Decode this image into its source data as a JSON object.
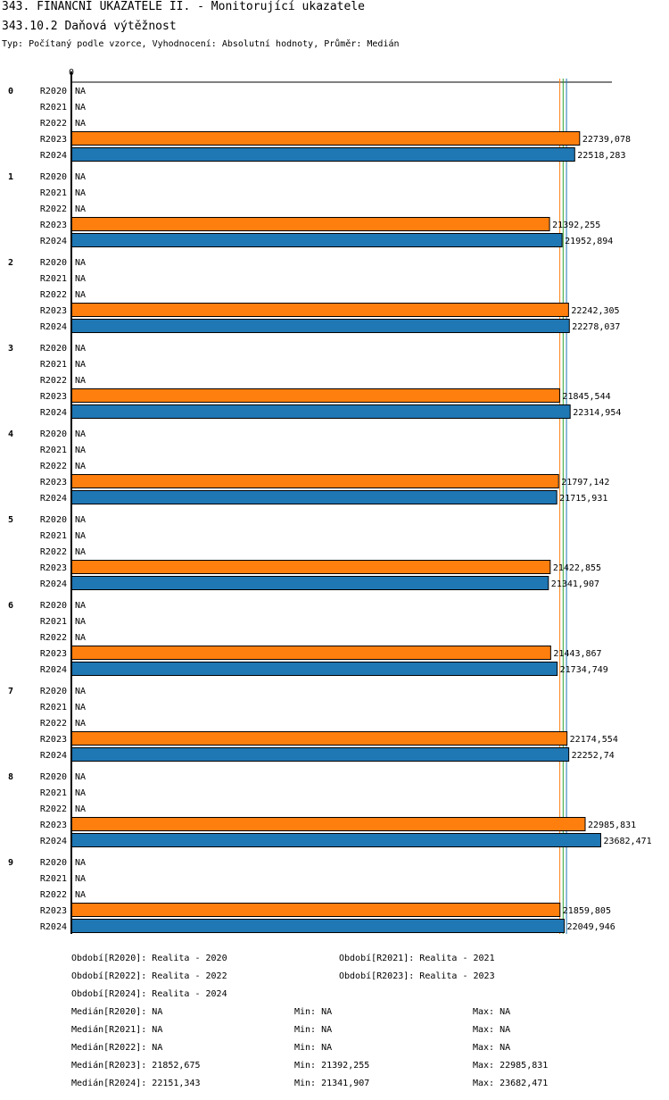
{
  "header": {
    "title": "343. FINANČNÍ UKAZATELE II. - Monitorující ukazatele",
    "subtitle": "343.10.2 Daňová výtěžnost",
    "type_line": "Typ: Počítaný podle vzorce, Vyhodnocení: Absolutní hodnoty, Průměr: Medián"
  },
  "colors": {
    "R2023": "#ff7f0e",
    "R2024": "#1f77b4",
    "median_R2023": "#ff7f0e",
    "median_R2024": "#1f77b4",
    "median_mid": "#2ca02c"
  },
  "chart_data": {
    "type": "bar",
    "orientation": "horizontal",
    "axis_zero_label": "0",
    "x_max": 24500,
    "na_label": "NA",
    "groups": [
      {
        "label": "0",
        "rows": [
          {
            "period": "R2020",
            "value": null,
            "label": "NA"
          },
          {
            "period": "R2021",
            "value": null,
            "label": "NA"
          },
          {
            "period": "R2022",
            "value": null,
            "label": "NA"
          },
          {
            "period": "R2023",
            "value": 22739.078,
            "label": "22739,078"
          },
          {
            "period": "R2024",
            "value": 22518.283,
            "label": "22518,283"
          }
        ]
      },
      {
        "label": "1",
        "rows": [
          {
            "period": "R2020",
            "value": null,
            "label": "NA"
          },
          {
            "period": "R2021",
            "value": null,
            "label": "NA"
          },
          {
            "period": "R2022",
            "value": null,
            "label": "NA"
          },
          {
            "period": "R2023",
            "value": 21392.255,
            "label": "21392,255"
          },
          {
            "period": "R2024",
            "value": 21952.894,
            "label": "21952,894"
          }
        ]
      },
      {
        "label": "2",
        "rows": [
          {
            "period": "R2020",
            "value": null,
            "label": "NA"
          },
          {
            "period": "R2021",
            "value": null,
            "label": "NA"
          },
          {
            "period": "R2022",
            "value": null,
            "label": "NA"
          },
          {
            "period": "R2023",
            "value": 22242.305,
            "label": "22242,305"
          },
          {
            "period": "R2024",
            "value": 22278.037,
            "label": "22278,037"
          }
        ]
      },
      {
        "label": "3",
        "rows": [
          {
            "period": "R2020",
            "value": null,
            "label": "NA"
          },
          {
            "period": "R2021",
            "value": null,
            "label": "NA"
          },
          {
            "period": "R2022",
            "value": null,
            "label": "NA"
          },
          {
            "period": "R2023",
            "value": 21845.544,
            "label": "21845,544"
          },
          {
            "period": "R2024",
            "value": 22314.954,
            "label": "22314,954"
          }
        ]
      },
      {
        "label": "4",
        "rows": [
          {
            "period": "R2020",
            "value": null,
            "label": "NA"
          },
          {
            "period": "R2021",
            "value": null,
            "label": "NA"
          },
          {
            "period": "R2022",
            "value": null,
            "label": "NA"
          },
          {
            "period": "R2023",
            "value": 21797.142,
            "label": "21797,142"
          },
          {
            "period": "R2024",
            "value": 21715.931,
            "label": "21715,931"
          }
        ]
      },
      {
        "label": "5",
        "rows": [
          {
            "period": "R2020",
            "value": null,
            "label": "NA"
          },
          {
            "period": "R2021",
            "value": null,
            "label": "NA"
          },
          {
            "period": "R2022",
            "value": null,
            "label": "NA"
          },
          {
            "period": "R2023",
            "value": 21422.855,
            "label": "21422,855"
          },
          {
            "period": "R2024",
            "value": 21341.907,
            "label": "21341,907"
          }
        ]
      },
      {
        "label": "6",
        "rows": [
          {
            "period": "R2020",
            "value": null,
            "label": "NA"
          },
          {
            "period": "R2021",
            "value": null,
            "label": "NA"
          },
          {
            "period": "R2022",
            "value": null,
            "label": "NA"
          },
          {
            "period": "R2023",
            "value": 21443.867,
            "label": "21443,867"
          },
          {
            "period": "R2024",
            "value": 21734.749,
            "label": "21734,749"
          }
        ]
      },
      {
        "label": "7",
        "rows": [
          {
            "period": "R2020",
            "value": null,
            "label": "NA"
          },
          {
            "period": "R2021",
            "value": null,
            "label": "NA"
          },
          {
            "period": "R2022",
            "value": null,
            "label": "NA"
          },
          {
            "period": "R2023",
            "value": 22174.554,
            "label": "22174,554"
          },
          {
            "period": "R2024",
            "value": 22252.74,
            "label": "22252,74"
          }
        ]
      },
      {
        "label": "8",
        "rows": [
          {
            "period": "R2020",
            "value": null,
            "label": "NA"
          },
          {
            "period": "R2021",
            "value": null,
            "label": "NA"
          },
          {
            "period": "R2022",
            "value": null,
            "label": "NA"
          },
          {
            "period": "R2023",
            "value": 22985.831,
            "label": "22985,831"
          },
          {
            "period": "R2024",
            "value": 23682.471,
            "label": "23682,471"
          }
        ]
      },
      {
        "label": "9",
        "rows": [
          {
            "period": "R2020",
            "value": null,
            "label": "NA"
          },
          {
            "period": "R2021",
            "value": null,
            "label": "NA"
          },
          {
            "period": "R2022",
            "value": null,
            "label": "NA"
          },
          {
            "period": "R2023",
            "value": 21859.805,
            "label": "21859,805"
          },
          {
            "period": "R2024",
            "value": 22049.946,
            "label": "22049,946"
          }
        ]
      }
    ],
    "median_lines": [
      {
        "name": "R2023",
        "value": 21852.675
      },
      {
        "name": "mid",
        "value": 22000
      },
      {
        "name": "R2024",
        "value": 22151.343
      }
    ]
  },
  "legend": {
    "periods": [
      "Období[R2020]: Realita - 2020",
      "Období[R2021]: Realita - 2021",
      "Období[R2022]: Realita - 2022",
      "Období[R2023]: Realita - 2023",
      "Období[R2024]: Realita - 2024"
    ],
    "stats": [
      {
        "median": "Medián[R2020]: NA",
        "min": "Min: NA",
        "max": "Max: NA"
      },
      {
        "median": "Medián[R2021]: NA",
        "min": "Min: NA",
        "max": "Max: NA"
      },
      {
        "median": "Medián[R2022]: NA",
        "min": "Min: NA",
        "max": "Max: NA"
      },
      {
        "median": "Medián[R2023]: 21852,675",
        "min": "Min: 21392,255",
        "max": "Max: 22985,831"
      },
      {
        "median": "Medián[R2024]: 22151,343",
        "min": "Min: 21341,907",
        "max": "Max: 23682,471"
      }
    ]
  }
}
